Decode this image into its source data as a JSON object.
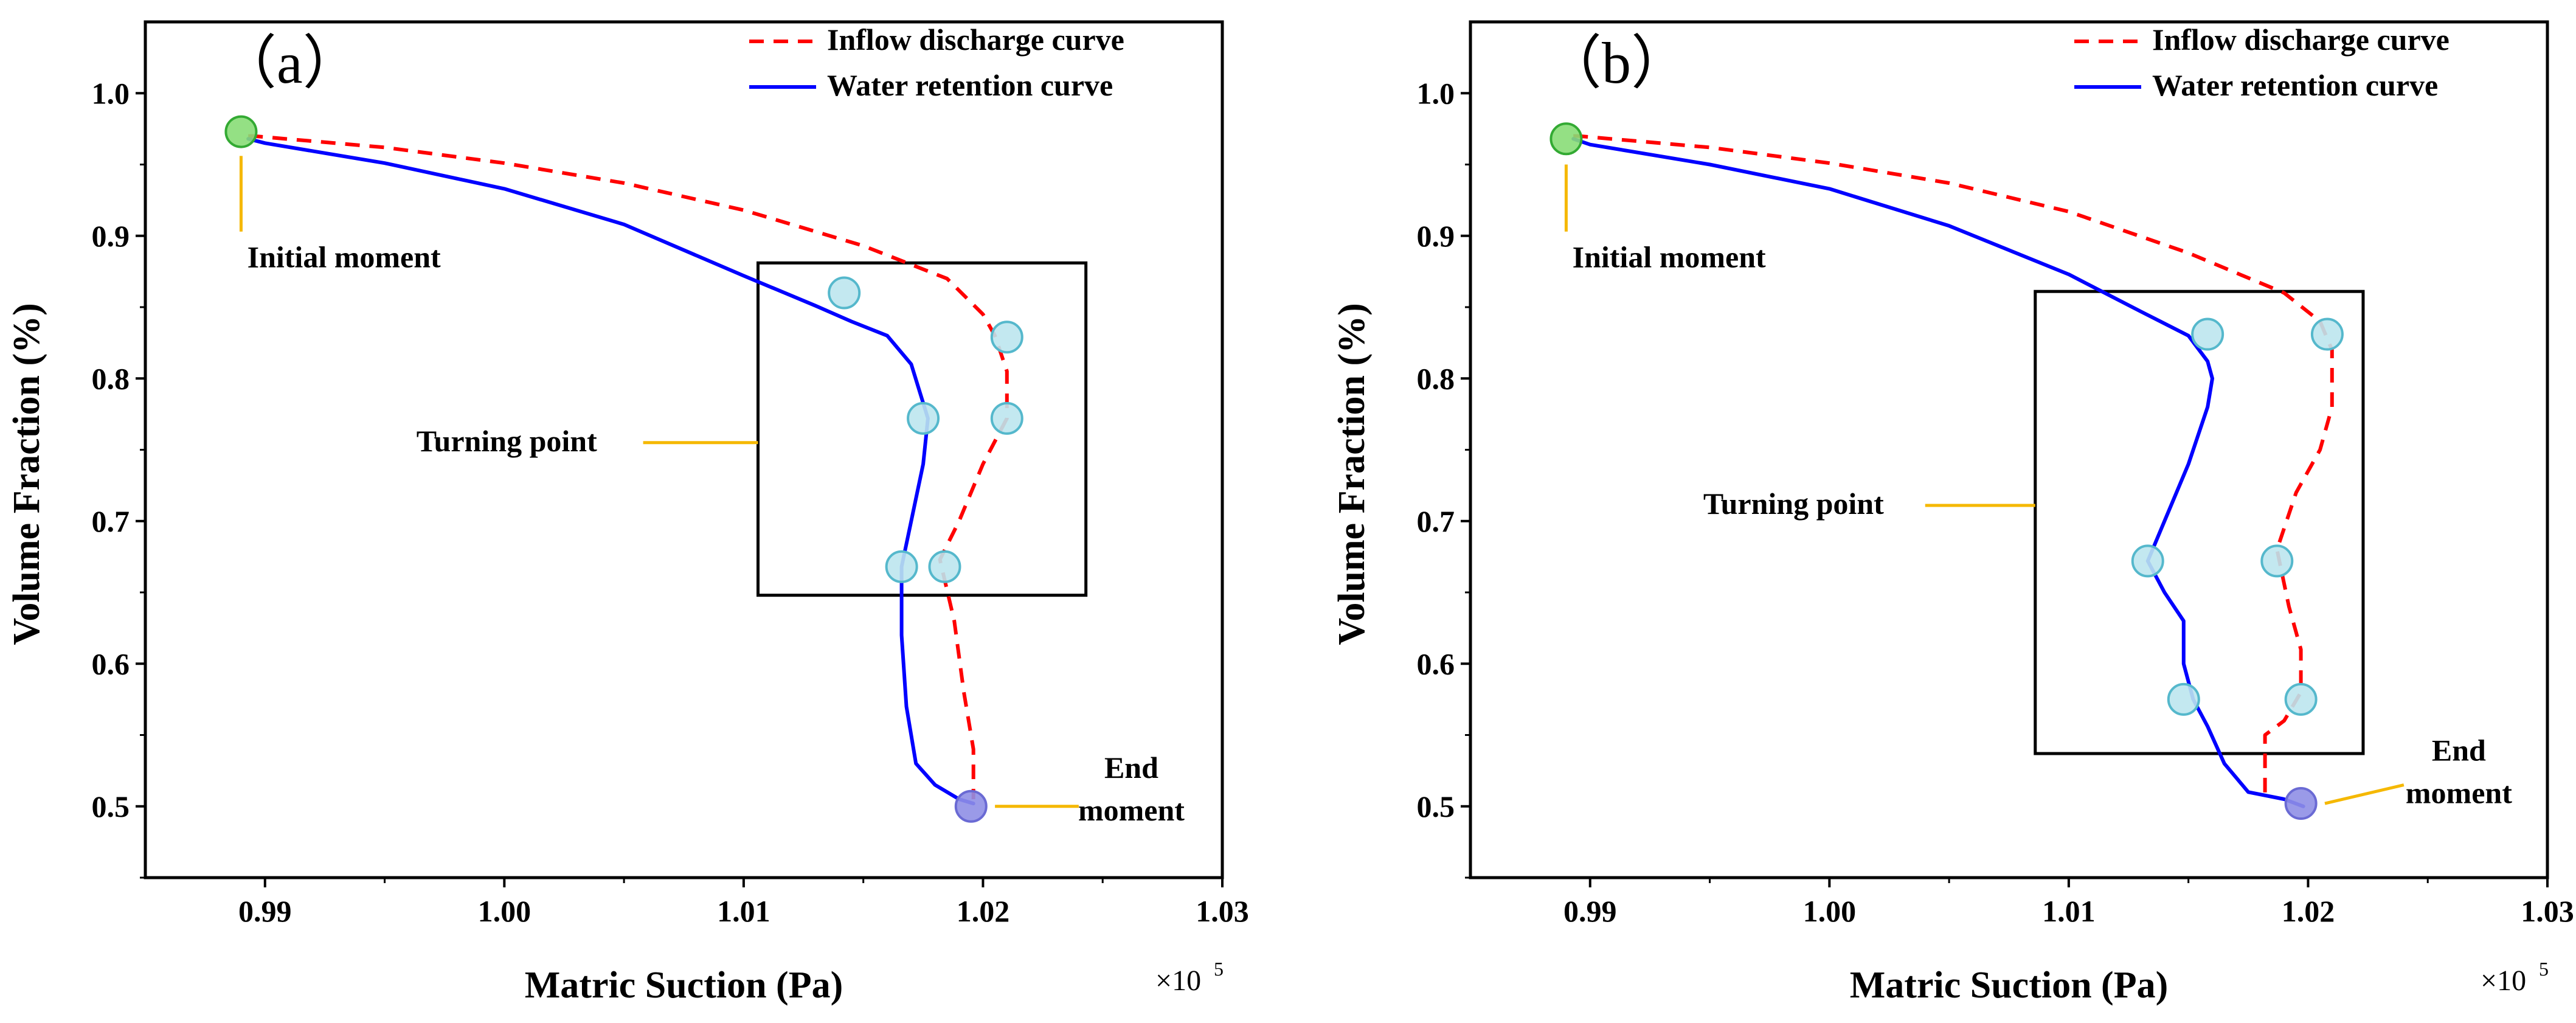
{
  "chart_data": [
    {
      "type": "line",
      "panel_label": "（a）",
      "xlabel": "Matric Suction (Pa)",
      "ylabel": "Volume Fraction (%)",
      "x_multiplier": "×10",
      "x_multiplier_exp": "5",
      "xlim": [
        0.985,
        1.03
      ],
      "ylim": [
        0.45,
        1.05
      ],
      "xticks": [
        0.99,
        1.0,
        1.01,
        1.02,
        1.03
      ],
      "xtick_labels": [
        "0.99",
        "1.00",
        "1.01",
        "1.02",
        "1.03"
      ],
      "yticks": [
        0.5,
        0.6,
        0.7,
        0.8,
        0.9,
        1.0
      ],
      "ytick_labels": [
        "0.5",
        "0.6",
        "0.7",
        "0.8",
        "0.9",
        "1.0"
      ],
      "legend_position": "top-right",
      "series": [
        {
          "name": "Inflow discharge curve",
          "color": "#ff0000",
          "dash": true,
          "x": [
            0.9893,
            0.9895,
            0.995,
            1.0,
            1.005,
            1.01,
            1.015,
            1.0185,
            1.02,
            1.0205,
            1.021,
            1.021,
            1.02,
            1.019,
            1.0182,
            1.0188,
            1.0192,
            1.0196,
            1.0196
          ],
          "y": [
            0.97,
            0.97,
            0.962,
            0.951,
            0.937,
            0.918,
            0.893,
            0.87,
            0.845,
            0.83,
            0.805,
            0.772,
            0.74,
            0.7,
            0.673,
            0.63,
            0.58,
            0.54,
            0.505
          ]
        },
        {
          "name": "Water retention curve",
          "color": "#0000ff",
          "dash": false,
          "x": [
            0.9893,
            0.99,
            0.995,
            1.0,
            1.005,
            1.01,
            1.013,
            1.0145,
            1.016,
            1.017,
            1.0177,
            1.0175,
            1.017,
            1.0166,
            1.0166,
            1.0168,
            1.0172,
            1.018,
            1.019,
            1.0196
          ],
          "y": [
            0.968,
            0.965,
            0.951,
            0.933,
            0.908,
            0.872,
            0.851,
            0.84,
            0.83,
            0.81,
            0.772,
            0.74,
            0.7,
            0.668,
            0.62,
            0.57,
            0.53,
            0.515,
            0.505,
            0.502
          ]
        }
      ],
      "markers": [
        {
          "x": 0.989,
          "y": 0.973,
          "fill": "#88dd77",
          "stroke": "#33aa33"
        },
        {
          "x": 1.0142,
          "y": 0.86,
          "fill": "#bde6ee",
          "stroke": "#55b8cc"
        },
        {
          "x": 1.021,
          "y": 0.829,
          "fill": "#bde6ee",
          "stroke": "#55b8cc"
        },
        {
          "x": 1.0175,
          "y": 0.772,
          "fill": "#bde6ee",
          "stroke": "#55b8cc"
        },
        {
          "x": 1.021,
          "y": 0.772,
          "fill": "#bde6ee",
          "stroke": "#55b8cc"
        },
        {
          "x": 1.0166,
          "y": 0.668,
          "fill": "#bde6ee",
          "stroke": "#55b8cc"
        },
        {
          "x": 1.0184,
          "y": 0.668,
          "fill": "#bde6ee",
          "stroke": "#55b8cc"
        },
        {
          "x": 1.0195,
          "y": 0.5,
          "fill": "#8f8fe6",
          "stroke": "#6a6ad4"
        }
      ],
      "box": {
        "x0": 1.0106,
        "x1": 1.0243,
        "y0": 0.648,
        "y1": 0.881
      },
      "annotations": [
        {
          "lines": [
            "Initial moment"
          ],
          "anchor": [
            0.989,
            0.973
          ],
          "leader": [
            [
              0.989,
              0.956
            ],
            [
              0.989,
              0.903
            ]
          ],
          "text_pos": [
            0.9933,
            0.878
          ],
          "align": "middle",
          "leader_color": "#f5b800"
        },
        {
          "lines": [
            "Turning point"
          ],
          "anchor": [
            1.0106,
            0.755
          ],
          "leader": [
            [
              1.0106,
              0.755
            ],
            [
              1.0058,
              0.755
            ]
          ],
          "text_pos": [
            1.0001,
            0.749
          ],
          "align": "middle",
          "leader_color": "#f5b800"
        },
        {
          "lines": [
            "End",
            "moment"
          ],
          "anchor": [
            1.0195,
            0.5
          ],
          "leader": [
            [
              1.0205,
              0.5
            ],
            [
              1.024,
              0.5
            ]
          ],
          "text_pos": [
            1.0262,
            0.52
          ],
          "align": "middle",
          "leader_color": "#f5b800"
        }
      ]
    },
    {
      "type": "line",
      "panel_label": "（b）",
      "xlabel": "Matric Suction (Pa)",
      "ylabel": "Volume Fraction (%)",
      "x_multiplier": "×10",
      "x_multiplier_exp": "5",
      "xlim": [
        0.985,
        1.03
      ],
      "ylim": [
        0.45,
        1.05
      ],
      "xticks": [
        0.99,
        1.0,
        1.01,
        1.02,
        1.03
      ],
      "xtick_labels": [
        "0.99",
        "1.00",
        "1.01",
        "1.02",
        "1.03"
      ],
      "yticks": [
        0.5,
        0.6,
        0.7,
        0.8,
        0.9,
        1.0
      ],
      "ytick_labels": [
        "0.5",
        "0.6",
        "0.7",
        "0.8",
        "0.9",
        "1.0"
      ],
      "legend_position": "top-right",
      "series": [
        {
          "name": "Inflow discharge curve",
          "color": "#ff0000",
          "dash": true,
          "x": [
            0.9893,
            0.9895,
            0.995,
            1.0,
            1.005,
            1.01,
            1.015,
            1.019,
            1.0205,
            1.021,
            1.021,
            1.0205,
            1.0195,
            1.0187,
            1.0192,
            1.0197,
            1.0197,
            1.019,
            1.0182,
            1.0182,
            1.0182
          ],
          "y": [
            0.97,
            0.97,
            0.962,
            0.951,
            0.937,
            0.917,
            0.888,
            0.86,
            0.84,
            0.82,
            0.78,
            0.75,
            0.72,
            0.68,
            0.64,
            0.61,
            0.58,
            0.56,
            0.55,
            0.53,
            0.505
          ]
        },
        {
          "name": "Water retention curve",
          "color": "#0000ff",
          "dash": false,
          "x": [
            0.9893,
            0.99,
            0.995,
            1.0,
            1.005,
            1.01,
            1.013,
            1.015,
            1.0158,
            1.016,
            1.0158,
            1.015,
            1.014,
            1.0133,
            1.014,
            1.0148,
            1.0148,
            1.0152,
            1.0158,
            1.0165,
            1.0175,
            1.019,
            1.0198
          ],
          "y": [
            0.968,
            0.964,
            0.95,
            0.933,
            0.907,
            0.873,
            0.847,
            0.83,
            0.812,
            0.8,
            0.78,
            0.74,
            0.7,
            0.672,
            0.65,
            0.63,
            0.6,
            0.575,
            0.556,
            0.53,
            0.51,
            0.505,
            0.5
          ]
        }
      ],
      "markers": [
        {
          "x": 0.989,
          "y": 0.968,
          "fill": "#88dd77",
          "stroke": "#33aa33"
        },
        {
          "x": 1.0158,
          "y": 0.831,
          "fill": "#bde6ee",
          "stroke": "#55b8cc"
        },
        {
          "x": 1.0208,
          "y": 0.831,
          "fill": "#bde6ee",
          "stroke": "#55b8cc"
        },
        {
          "x": 1.0133,
          "y": 0.672,
          "fill": "#bde6ee",
          "stroke": "#55b8cc"
        },
        {
          "x": 1.0187,
          "y": 0.672,
          "fill": "#bde6ee",
          "stroke": "#55b8cc"
        },
        {
          "x": 1.0148,
          "y": 0.575,
          "fill": "#bde6ee",
          "stroke": "#55b8cc"
        },
        {
          "x": 1.0197,
          "y": 0.575,
          "fill": "#bde6ee",
          "stroke": "#55b8cc"
        },
        {
          "x": 1.0197,
          "y": 0.502,
          "fill": "#8f8fe6",
          "stroke": "#6a6ad4"
        }
      ],
      "box": {
        "x0": 1.0086,
        "x1": 1.0223,
        "y0": 0.537,
        "y1": 0.861
      },
      "annotations": [
        {
          "lines": [
            "Initial moment"
          ],
          "anchor": [
            0.989,
            0.968
          ],
          "leader": [
            [
              0.989,
              0.95
            ],
            [
              0.989,
              0.903
            ]
          ],
          "text_pos": [
            0.9933,
            0.878
          ],
          "align": "middle",
          "leader_color": "#f5b800"
        },
        {
          "lines": [
            "Turning point"
          ],
          "anchor": [
            1.0086,
            0.711
          ],
          "leader": [
            [
              1.0086,
              0.711
            ],
            [
              1.004,
              0.711
            ]
          ],
          "text_pos": [
            0.9985,
            0.705
          ],
          "align": "middle",
          "leader_color": "#f5b800"
        },
        {
          "lines": [
            "End",
            "moment"
          ],
          "anchor": [
            1.0197,
            0.502
          ],
          "leader": [
            [
              1.0207,
              0.502
            ],
            [
              1.024,
              0.515
            ]
          ],
          "text_pos": [
            1.0263,
            0.532
          ],
          "align": "middle",
          "leader_color": "#f5b800"
        }
      ]
    }
  ]
}
